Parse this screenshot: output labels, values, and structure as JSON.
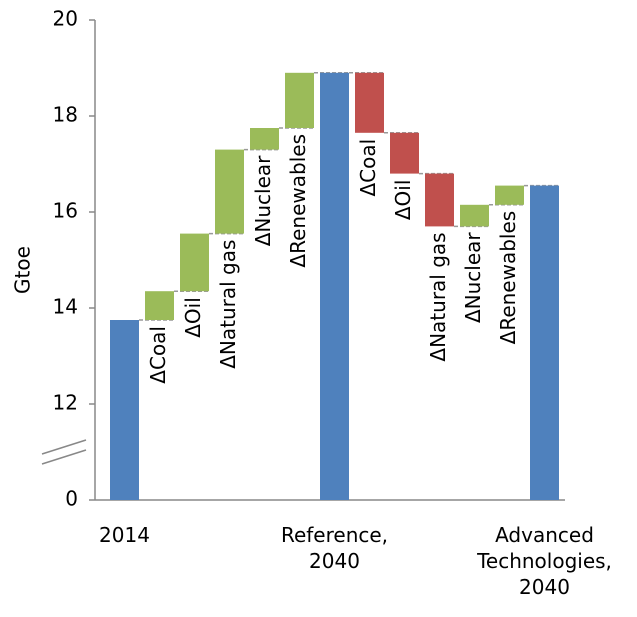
{
  "chart_data": {
    "type": "waterfall",
    "y_label": "Gtoe",
    "categories": [
      "2014",
      "ΔCoal",
      "ΔOil",
      "ΔNatural gas",
      "ΔNuclear",
      "ΔRenewables",
      "Reference,\n2040",
      "ΔCoal",
      "ΔOil",
      "ΔNatural gas",
      "ΔNuclear",
      "ΔRenewables",
      "Advanced\nTechnologies,\n2040"
    ],
    "measure": [
      "absolute",
      "relative",
      "relative",
      "relative",
      "relative",
      "relative",
      "absolute",
      "relative",
      "relative",
      "relative",
      "relative",
      "relative",
      "absolute"
    ],
    "values": [
      13.75,
      0.6,
      1.2,
      1.75,
      0.45,
      1.15,
      18.9,
      -1.25,
      -0.85,
      -1.1,
      0.45,
      0.4,
      16.55
    ],
    "colors": {
      "total": "#4f81bd",
      "increase": "#9bbb59",
      "decrease": "#c0504d"
    },
    "ylim": [
      0,
      20
    ],
    "yticks": [
      0,
      12,
      14,
      16,
      18,
      20
    ],
    "axis_break": true
  }
}
